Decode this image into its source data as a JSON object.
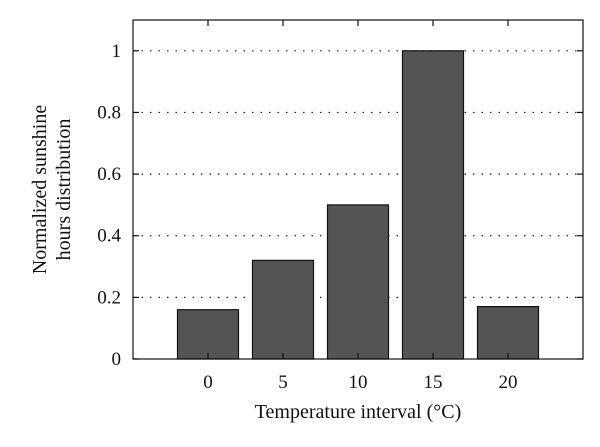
{
  "chart_data": {
    "type": "bar",
    "categories": [
      "0",
      "5",
      "10",
      "15",
      "20"
    ],
    "values": [
      0.16,
      0.32,
      0.5,
      1.0,
      0.17
    ],
    "title": "",
    "xlabel": "Temperature interval (°C)",
    "ylabel_lines": [
      "Normalized sunshine",
      "hours distribution"
    ],
    "ylim": [
      0,
      1.1
    ],
    "yticks": [
      0,
      0.2,
      0.4,
      0.6,
      0.8,
      1
    ],
    "ytick_labels": [
      "0",
      "0.2",
      "0.4",
      "0.6",
      "0.8",
      "1"
    ],
    "grid": "horizontal dotted",
    "legend": "none",
    "bar_color": "#545454",
    "bar_edge_color": "#111111"
  }
}
